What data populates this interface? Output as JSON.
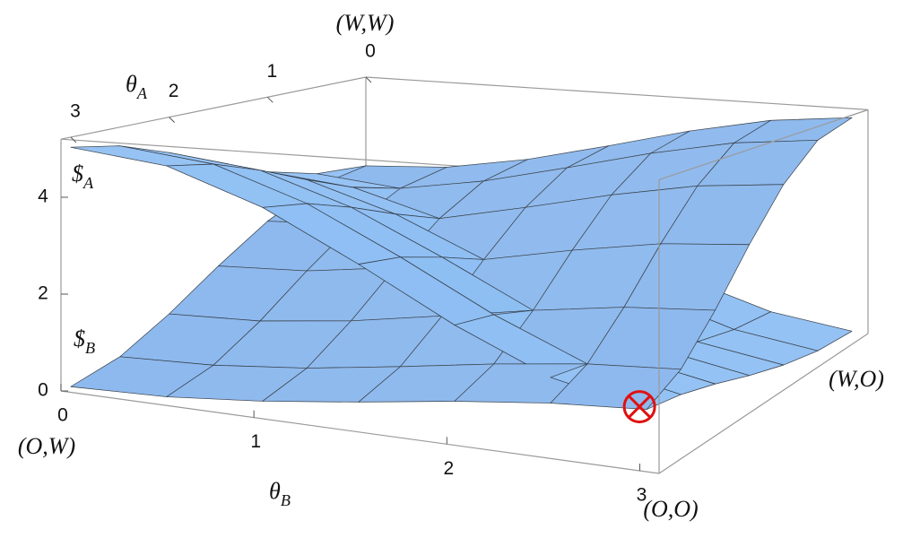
{
  "chart_data": {
    "type": "surface3d",
    "x_label": "θB",
    "y_label": "θA",
    "x": [
      0,
      0.5,
      1,
      1.5,
      2,
      2.5,
      3
    ],
    "y": [
      0,
      0.5,
      1,
      1.5,
      2,
      2.5,
      3
    ],
    "xlim": [
      0,
      3.1
    ],
    "ylim": [
      0,
      3.1
    ],
    "zlim": [
      0,
      5.2
    ],
    "xticks": [
      0,
      1,
      2,
      3
    ],
    "yticks": [
      0,
      1,
      2,
      3
    ],
    "zticks": [
      0,
      2,
      4
    ],
    "corner_labels": [
      "(W,W)",
      "(O,W)",
      "(O,O)",
      "(W,O)"
    ],
    "series": [
      {
        "name": "$A",
        "color": "#6aaaf0",
        "values": [
          [
            3,
            2.82,
            2.31,
            1.61,
            0.88,
            0.3,
            0.02
          ],
          [
            3.12,
            2.93,
            2.42,
            1.7,
            0.95,
            0.37,
            0.08
          ],
          [
            3.46,
            3.26,
            2.72,
            1.96,
            1.17,
            0.55,
            0.25
          ],
          [
            3.93,
            3.72,
            3.13,
            2.32,
            1.48,
            0.81,
            0.48
          ],
          [
            4.42,
            4.19,
            3.56,
            2.69,
            1.79,
            1.08,
            0.73
          ],
          [
            4.8,
            4.56,
            3.9,
            2.99,
            2.04,
            1.29,
            0.92
          ],
          [
            4.99,
            4.75,
            4.07,
            3.13,
            2.16,
            1.39,
            1.02
          ]
        ]
      },
      {
        "name": "$B",
        "color": "#5b9ae6",
        "values": [
          [
            3,
            3.12,
            3.46,
            3.93,
            4.42,
            4.8,
            4.99
          ],
          [
            2.82,
            2.93,
            3.26,
            3.72,
            4.19,
            4.56,
            4.75
          ],
          [
            2.31,
            2.42,
            2.72,
            3.13,
            3.56,
            3.9,
            4.07
          ],
          [
            1.61,
            1.7,
            1.96,
            2.32,
            2.69,
            2.99,
            3.13
          ],
          [
            0.88,
            0.95,
            1.17,
            1.48,
            1.79,
            2.04,
            2.16
          ],
          [
            0.3,
            0.37,
            0.55,
            0.81,
            1.08,
            1.29,
            1.39
          ],
          [
            0.02,
            0.08,
            0.25,
            0.48,
            0.73,
            0.92,
            1.02
          ]
        ]
      }
    ]
  }
}
